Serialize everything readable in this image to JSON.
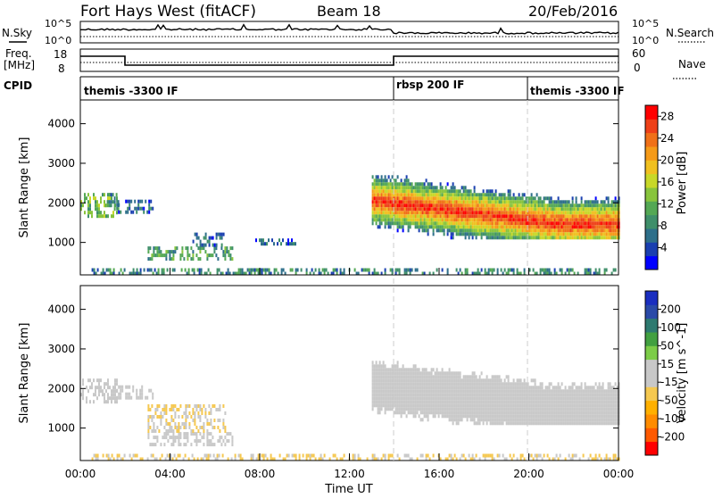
{
  "header": {
    "station": "Fort Hays West (fitACF)",
    "beam": "Beam 18",
    "date": "20/Feb/2016"
  },
  "top_panels": {
    "nsky_label": "N.Sky",
    "nsky_ticks": [
      "10^5",
      "10^0"
    ],
    "nsearch_label": "N.Search",
    "nsearch_ticks": [
      "10^5",
      "10^0"
    ],
    "freq_label_1": "Freq.",
    "freq_label_2": "[MHz]",
    "freq_ticks": [
      "18",
      "8"
    ],
    "nave_label": "Nave",
    "nave_ticks": [
      "60",
      "0"
    ],
    "cpid_label": "CPID",
    "cpid_segments": [
      {
        "label": "themis -3300 IF",
        "start": 0,
        "end": 14
      },
      {
        "label": "rbsp 200 IF",
        "start": 14,
        "end": 20
      },
      {
        "label": "themis -3300 IF",
        "start": 20,
        "end": 24
      }
    ]
  },
  "chart_data": [
    {
      "type": "heatmap",
      "title": "",
      "xlabel": "Time UT",
      "ylabel": "Slant Range [km]",
      "xlim": [
        0,
        24
      ],
      "ylim": [
        180,
        4600
      ],
      "x_ticks": [
        "00:00",
        "04:00",
        "08:00",
        "12:00",
        "16:00",
        "20:00",
        "00:00"
      ],
      "y_ticks": [
        "1000",
        "2000",
        "3000",
        "4000"
      ],
      "colorbar": {
        "label": "Power [dB]",
        "ticks": [
          "4",
          "8",
          "12",
          "16",
          "20",
          "24",
          "28"
        ],
        "range": [
          0,
          30
        ],
        "colors": [
          "#0000ff",
          "#1a3fb0",
          "#2e6f8a",
          "#3f8f6a",
          "#54a854",
          "#88c43c",
          "#c8d828",
          "#f0c020",
          "#f59a18",
          "#f07018",
          "#ee4018",
          "#ff0000"
        ]
      },
      "features": [
        {
          "time": [
            0.0,
            1.6
          ],
          "range": [
            1650,
            2250
          ],
          "value": 12
        },
        {
          "time": [
            1.1,
            1.7
          ],
          "range": [
            1850,
            2250
          ],
          "value": 8
        },
        {
          "time": [
            1.6,
            3.2
          ],
          "range": [
            1800,
            2080
          ],
          "value": 6
        },
        {
          "time": [
            3.0,
            6.8
          ],
          "range": [
            620,
            900
          ],
          "value": 10
        },
        {
          "time": [
            5.0,
            6.4
          ],
          "range": [
            950,
            1250
          ],
          "value": 6
        },
        {
          "time": [
            7.8,
            9.6
          ],
          "range": [
            1000,
            1100
          ],
          "value": 5
        },
        {
          "time": [
            0.5,
            24.0
          ],
          "range": [
            200,
            350
          ],
          "value": 8
        },
        {
          "time": [
            13.0,
            24.0
          ],
          "range": [
            1150,
            2700
          ],
          "value": 22
        }
      ]
    },
    {
      "type": "heatmap",
      "title": "",
      "xlabel": "Time UT",
      "ylabel": "Slant Range [km]",
      "xlim": [
        0,
        24
      ],
      "ylim": [
        180,
        4600
      ],
      "x_ticks": [
        "00:00",
        "04:00",
        "08:00",
        "12:00",
        "16:00",
        "20:00",
        "00:00"
      ],
      "y_ticks": [
        "1000",
        "2000",
        "3000",
        "4000"
      ],
      "colorbar": {
        "label": "Velocity [m s^-1]",
        "ticks": [
          "200",
          "100",
          "50",
          "15",
          "-15",
          "-50",
          "-100",
          "-200"
        ],
        "range": [
          -250,
          250
        ],
        "colors": [
          "#ff0000",
          "#ff5a00",
          "#ff8c00",
          "#ffb000",
          "#f5c850",
          "#c8c8c8",
          "#c8c8c8",
          "#7ccc48",
          "#42a040",
          "#2e7a70",
          "#2a4aa8",
          "#1a2ec0"
        ]
      },
      "features": [
        {
          "time": [
            0.0,
            1.6
          ],
          "range": [
            1650,
            2250
          ],
          "value": 0
        },
        {
          "time": [
            1.6,
            3.2
          ],
          "range": [
            1800,
            2080
          ],
          "value": 0
        },
        {
          "time": [
            3.0,
            6.8
          ],
          "range": [
            620,
            900
          ],
          "value": -10
        },
        {
          "time": [
            3.0,
            6.5
          ],
          "range": [
            900,
            1600
          ],
          "value": -40
        },
        {
          "time": [
            0.5,
            24.0
          ],
          "range": [
            200,
            350
          ],
          "value": -45
        },
        {
          "time": [
            13.0,
            24.0
          ],
          "range": [
            1150,
            2700
          ],
          "value": 0
        }
      ]
    }
  ]
}
